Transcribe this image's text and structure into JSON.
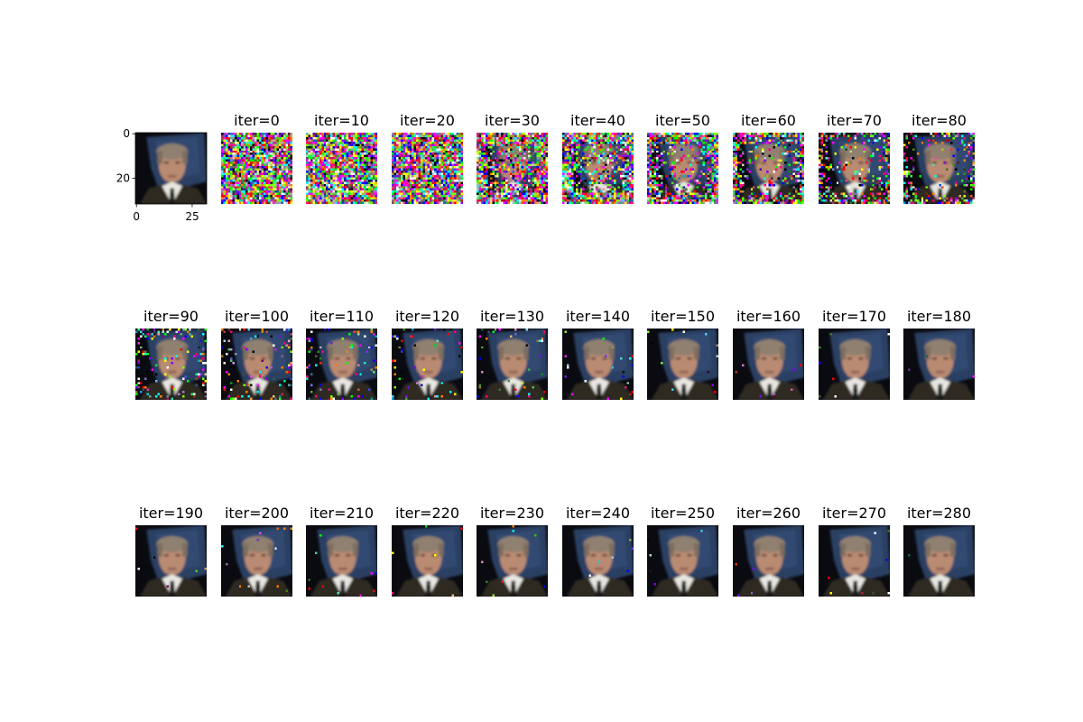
{
  "original": {
    "yticks": [
      0,
      20
    ],
    "xticks": [
      0,
      25
    ]
  },
  "panels": [
    {
      "title": "iter=0"
    },
    {
      "title": "iter=10"
    },
    {
      "title": "iter=20"
    },
    {
      "title": "iter=30"
    },
    {
      "title": "iter=40"
    },
    {
      "title": "iter=50"
    },
    {
      "title": "iter=60"
    },
    {
      "title": "iter=70"
    },
    {
      "title": "iter=80"
    },
    {
      "title": "iter=90"
    },
    {
      "title": "iter=100"
    },
    {
      "title": "iter=110"
    },
    {
      "title": "iter=120"
    },
    {
      "title": "iter=130"
    },
    {
      "title": "iter=140"
    },
    {
      "title": "iter=150"
    },
    {
      "title": "iter=160"
    },
    {
      "title": "iter=170"
    },
    {
      "title": "iter=180"
    },
    {
      "title": "iter=190"
    },
    {
      "title": "iter=200"
    },
    {
      "title": "iter=210"
    },
    {
      "title": "iter=220"
    },
    {
      "title": "iter=230"
    },
    {
      "title": "iter=240"
    },
    {
      "title": "iter=250"
    },
    {
      "title": "iter=260"
    },
    {
      "title": "iter=270"
    },
    {
      "title": "iter=280"
    }
  ]
}
